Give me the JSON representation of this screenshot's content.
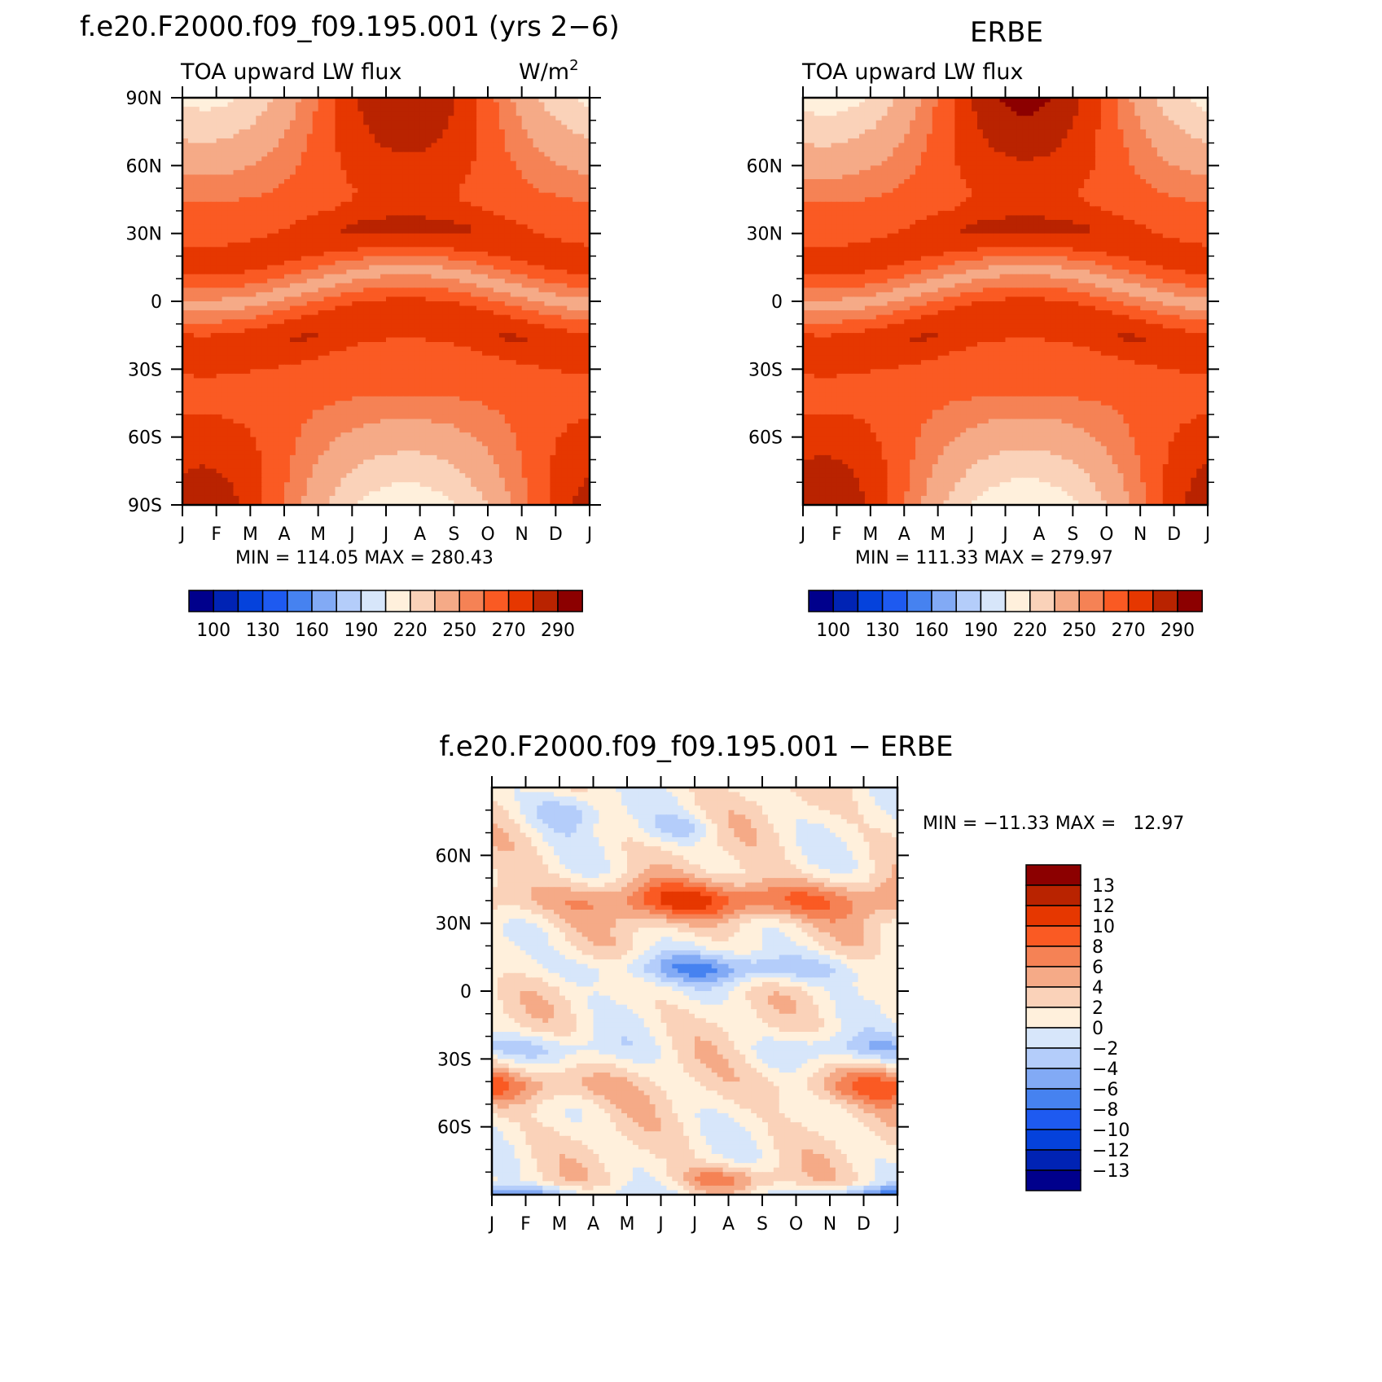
{
  "chart_data": [
    {
      "type": "heatmap",
      "title": "f.e20.F2000.f09_f09.195.001 (yrs 2−6)",
      "left_string": "TOA upward LW flux",
      "right_string": "W/m",
      "units_superscript": "2",
      "x_tick_labels": [
        "J",
        "F",
        "M",
        "A",
        "M",
        "J",
        "J",
        "A",
        "S",
        "O",
        "N",
        "D",
        "J"
      ],
      "y_tick_labels": [
        "90N",
        "60N",
        "30N",
        "0",
        "30S",
        "60S",
        "90S"
      ],
      "y_tick_values": [
        90,
        60,
        30,
        0,
        -30,
        -60,
        -90
      ],
      "ylim": [
        -90,
        90
      ],
      "xlim": [
        0,
        12
      ],
      "minmax_text": "MIN = 114.05 MAX = 280.43",
      "min": 114.05,
      "max": 280.43,
      "colorbar": {
        "labels": [
          "100",
          "130",
          "160",
          "190",
          "220",
          "250",
          "270",
          "290"
        ],
        "levels": [
          100,
          115,
          130,
          145,
          160,
          175,
          190,
          205,
          220,
          235,
          250,
          260,
          270,
          280,
          290
        ],
        "colors": [
          "#00008c",
          "#0023b4",
          "#0542dc",
          "#1e5af0",
          "#4682f0",
          "#82aaf5",
          "#b4cdfa",
          "#d7e6fa",
          "#fff0dc",
          "#fad2b9",
          "#f5aa87",
          "#f58255",
          "#fa5a23",
          "#e63700",
          "#b92300",
          "#8c0000"
        ]
      },
      "field_model": {
        "equator_shift_deg": 6,
        "seasonal_amp_deg": 8,
        "polar_seasonal": 35
      }
    },
    {
      "type": "heatmap",
      "title": "ERBE",
      "left_string": "TOA upward LW flux",
      "x_tick_labels": [
        "J",
        "F",
        "M",
        "A",
        "M",
        "J",
        "J",
        "A",
        "S",
        "O",
        "N",
        "D",
        "J"
      ],
      "y_tick_labels": [
        "60N",
        "30N",
        "0",
        "30S",
        "60S"
      ],
      "y_tick_values": [
        60,
        30,
        0,
        -30,
        -60
      ],
      "ylim": [
        -90,
        90
      ],
      "xlim": [
        0,
        12
      ],
      "minmax_text": "MIN = 111.33 MAX = 279.97",
      "min": 111.33,
      "max": 279.97,
      "colorbar": {
        "labels": [
          "100",
          "130",
          "160",
          "190",
          "220",
          "250",
          "270",
          "290"
        ],
        "levels": [
          100,
          115,
          130,
          145,
          160,
          175,
          190,
          205,
          220,
          235,
          250,
          260,
          270,
          280,
          290
        ],
        "colors": [
          "#00008c",
          "#0023b4",
          "#0542dc",
          "#1e5af0",
          "#4682f0",
          "#82aaf5",
          "#b4cdfa",
          "#d7e6fa",
          "#fff0dc",
          "#fad2b9",
          "#f5aa87",
          "#f58255",
          "#fa5a23",
          "#e63700",
          "#b92300",
          "#8c0000"
        ]
      },
      "field_model": {
        "equator_shift_deg": 6,
        "seasonal_amp_deg": 8,
        "polar_seasonal": 38
      }
    },
    {
      "type": "heatmap",
      "title": "f.e20.F2000.f09_f09.195.001 − ERBE",
      "x_tick_labels": [
        "J",
        "F",
        "M",
        "A",
        "M",
        "J",
        "J",
        "A",
        "S",
        "O",
        "N",
        "D",
        "J"
      ],
      "y_tick_labels": [
        "60N",
        "30N",
        "0",
        "30S",
        "60S"
      ],
      "y_tick_values": [
        60,
        30,
        0,
        -30,
        -60
      ],
      "ylim": [
        -90,
        90
      ],
      "xlim": [
        0,
        12
      ],
      "minmax_text": "MIN = −11.33 MAX =   12.97",
      "min": -11.33,
      "max": 12.97,
      "colorbar": {
        "labels": [
          "13",
          "12",
          "10",
          "8",
          "6",
          "4",
          "2",
          "0",
          "−2",
          "−4",
          "−6",
          "−8",
          "−10",
          "−12",
          "−13"
        ],
        "levels": [
          -13,
          -12,
          -10,
          -8,
          -6,
          -4,
          -2,
          0,
          2,
          4,
          6,
          8,
          10,
          12,
          13
        ],
        "colors": [
          "#00008c",
          "#0023b4",
          "#0542dc",
          "#1e5af0",
          "#4682f0",
          "#82aaf5",
          "#b4cdfa",
          "#d7e6fa",
          "#fff0dc",
          "#fad2b9",
          "#f5aa87",
          "#f58255",
          "#fa5a23",
          "#e63700",
          "#b92300",
          "#8c0000"
        ]
      }
    }
  ]
}
